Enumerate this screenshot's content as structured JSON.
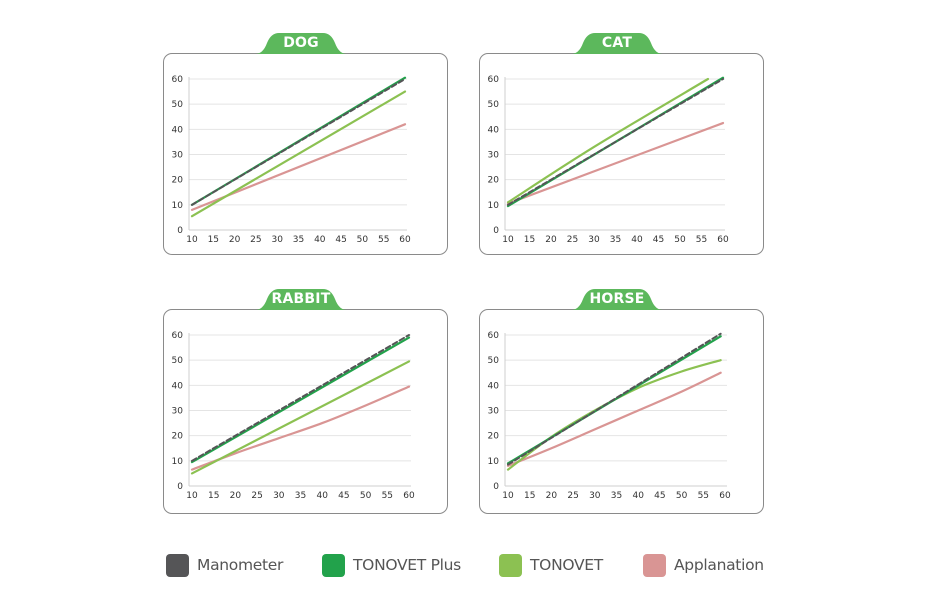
{
  "colors": {
    "tab_green": "#5cb85c",
    "manometer": "#555557",
    "tonovet_plus": "#22a24b",
    "tonovet": "#8cc152",
    "applanation": "#d99594",
    "grid": "#e4e4e4",
    "axis": "#cfcfcf"
  },
  "legend": [
    {
      "name": "Manometer",
      "color": "#555557"
    },
    {
      "name": "TONOVET Plus",
      "color": "#22a24b"
    },
    {
      "name": "TONOVET",
      "color": "#8cc152"
    },
    {
      "name": "Applanation",
      "color": "#d99594"
    }
  ],
  "chart_data": [
    {
      "type": "line",
      "title": "DOG",
      "xlim": [
        10,
        60
      ],
      "ylim": [
        0,
        60
      ],
      "xticks": [
        10,
        15,
        20,
        25,
        30,
        35,
        40,
        45,
        50,
        55,
        60
      ],
      "yticks": [
        0,
        10,
        20,
        30,
        40,
        50,
        60
      ],
      "grid": true,
      "series": [
        {
          "name": "Applanation",
          "x": [
            10,
            60
          ],
          "y": [
            8,
            42
          ],
          "style": "solid"
        },
        {
          "name": "TONOVET",
          "x": [
            10,
            60
          ],
          "y": [
            5.5,
            55
          ],
          "style": "solid"
        },
        {
          "name": "TONOVET Plus",
          "x": [
            10,
            60
          ],
          "y": [
            10,
            60.5
          ],
          "style": "solid"
        },
        {
          "name": "Manometer",
          "x": [
            10,
            60
          ],
          "y": [
            10,
            60
          ],
          "style": "dashed"
        }
      ]
    },
    {
      "type": "line",
      "title": "CAT",
      "xlim": [
        10,
        60
      ],
      "ylim": [
        0,
        60
      ],
      "xticks": [
        10,
        15,
        20,
        25,
        30,
        35,
        40,
        45,
        50,
        55,
        60
      ],
      "yticks": [
        0,
        10,
        20,
        30,
        40,
        50,
        60
      ],
      "grid": true,
      "series": [
        {
          "name": "Applanation",
          "x": [
            10,
            60
          ],
          "y": [
            10.5,
            42.5
          ],
          "style": "solid"
        },
        {
          "name": "TONOVET",
          "x": [
            10,
            30,
            56.5
          ],
          "y": [
            11,
            33,
            60
          ],
          "style": "solid"
        },
        {
          "name": "TONOVET Plus",
          "x": [
            10,
            60
          ],
          "y": [
            9.5,
            60.5
          ],
          "style": "solid"
        },
        {
          "name": "Manometer",
          "x": [
            10,
            60
          ],
          "y": [
            10,
            60
          ],
          "style": "dashed"
        }
      ]
    },
    {
      "type": "line",
      "title": "RABBIT",
      "xlim": [
        10,
        60
      ],
      "ylim": [
        0,
        60
      ],
      "xticks": [
        10,
        15,
        20,
        25,
        30,
        35,
        40,
        45,
        50,
        55,
        60
      ],
      "yticks": [
        0,
        10,
        20,
        30,
        40,
        50,
        60
      ],
      "grid": true,
      "series": [
        {
          "name": "Applanation",
          "x": [
            10,
            20,
            30,
            40,
            50,
            60
          ],
          "y": [
            6.5,
            13,
            19,
            25,
            32,
            39.5
          ],
          "style": "solid"
        },
        {
          "name": "TONOVET",
          "x": [
            10,
            60
          ],
          "y": [
            5,
            49.5
          ],
          "style": "solid"
        },
        {
          "name": "TONOVET Plus",
          "x": [
            10,
            60
          ],
          "y": [
            9.5,
            59
          ],
          "style": "solid"
        },
        {
          "name": "Manometer",
          "x": [
            10,
            60
          ],
          "y": [
            10,
            60
          ],
          "style": "dashed"
        }
      ]
    },
    {
      "type": "line",
      "title": "HORSE",
      "xlim": [
        10,
        60
      ],
      "ylim": [
        0,
        60
      ],
      "xticks": [
        10,
        15,
        20,
        25,
        30,
        35,
        40,
        45,
        50,
        55,
        60
      ],
      "yticks": [
        0,
        10,
        20,
        30,
        40,
        50,
        60
      ],
      "grid": true,
      "series": [
        {
          "name": "Applanation",
          "x": [
            10,
            20,
            30,
            40,
            50,
            59
          ],
          "y": [
            8,
            15,
            22.5,
            30,
            37.5,
            45
          ],
          "style": "solid"
        },
        {
          "name": "TONOVET",
          "x": [
            10,
            20,
            30,
            40,
            50,
            59
          ],
          "y": [
            6.5,
            19.5,
            30,
            39,
            45.5,
            50
          ],
          "style": "solid"
        },
        {
          "name": "TONOVET Plus",
          "x": [
            10,
            59
          ],
          "y": [
            9,
            59.5
          ],
          "style": "solid"
        },
        {
          "name": "Manometer",
          "x": [
            10,
            59
          ],
          "y": [
            8.5,
            60.5
          ],
          "style": "dashed"
        }
      ]
    }
  ]
}
